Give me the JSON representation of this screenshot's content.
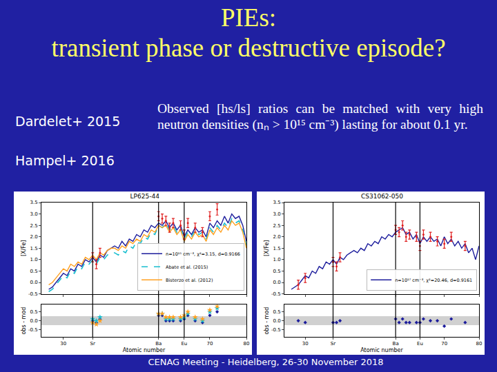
{
  "slide": {
    "title": [
      "PIEs:",
      "transient phase or destructive episode?"
    ],
    "references": [
      "Dardelet+ 2015",
      "Hampel+ 2016"
    ],
    "text": "Observed [hs/ls] ratios can be matched with very high neutron densities (nₙ > 10¹⁵ cm⁻³) lasting for about 0.1 yr.",
    "footer": "CENAG Meeting - Heidelberg, 26-30 November 2018"
  },
  "chart_data": [
    {
      "type": "line",
      "title": "LP625-44",
      "x_label": "Atomic number",
      "y_label": "[X/Fe]",
      "residual_label": "obs - mod",
      "xlim": [
        24,
        80
      ],
      "xticks": [
        30,
        {
          "value": 38,
          "label": "Sr"
        },
        {
          "value": 56,
          "label": "Ba"
        },
        {
          "value": 63,
          "label": "Eu"
        },
        70,
        80
      ],
      "vlines": [
        38,
        56,
        63
      ],
      "ylim": [
        -0.5,
        3.5
      ],
      "yticks": [
        -0.5,
        {
          "value": 0,
          "label": "0.0"
        },
        0.5,
        {
          "value": 1,
          "label": "1.0"
        },
        1.5,
        {
          "value": 2,
          "label": "2.0"
        },
        2.5,
        {
          "value": 3,
          "label": "3.0"
        },
        3.5
      ],
      "residual_ylim": [
        -0.9,
        0.9
      ],
      "residual_yticks": [
        -0.5,
        {
          "value": 0,
          "label": "0.0"
        },
        0.5
      ],
      "residual_band": [
        -0.25,
        0.25
      ],
      "grid": false,
      "legend": "lower right",
      "x": [
        26,
        27,
        28,
        29,
        30,
        31,
        32,
        33,
        34,
        35,
        36,
        37,
        38,
        39,
        40,
        41,
        42,
        43,
        44,
        45,
        46,
        47,
        48,
        49,
        50,
        51,
        52,
        53,
        54,
        55,
        56,
        57,
        58,
        59,
        60,
        61,
        62,
        63,
        64,
        65,
        66,
        67,
        68,
        69,
        70,
        71,
        72,
        73,
        74,
        75,
        76,
        77,
        78,
        79,
        80
      ],
      "series": [
        {
          "name": "n=10¹⁵ cm⁻³, χ²=3.15, d=0.9166",
          "color": "#1c1c9c",
          "line_style": "solid",
          "marker": "diamond",
          "values": [
            -0.3,
            -0.2,
            0.0,
            0.2,
            0.4,
            0.3,
            0.6,
            0.5,
            0.8,
            0.7,
            1.0,
            0.9,
            1.1,
            0.9,
            1.2,
            1.1,
            1.4,
            1.5,
            1.6,
            1.5,
            1.8,
            1.6,
            1.9,
            1.8,
            2.1,
            2.0,
            2.3,
            2.2,
            2.5,
            2.4,
            2.6,
            2.5,
            2.7,
            2.4,
            2.6,
            2.3,
            2.5,
            2.0,
            2.3,
            2.1,
            2.4,
            2.2,
            2.3,
            2.0,
            2.6,
            2.4,
            2.7,
            2.5,
            2.9,
            2.6,
            3.0,
            2.8,
            2.9,
            2.5,
            1.8
          ],
          "residuals": [
            0.0,
            -0.1,
            0.1,
            0.3,
            0.3,
            0.0,
            0.0,
            0.0,
            0.0,
            0.1,
            0.3,
            0.0,
            -0.1,
            0.3,
            0.5
          ]
        },
        {
          "name": "Abate et al. (2015)",
          "color": "#17becf",
          "line_style": "dashed",
          "marker": "star",
          "values": [
            -0.4,
            -0.3,
            -0.1,
            0.1,
            0.3,
            0.2,
            0.5,
            0.4,
            0.7,
            0.6,
            0.9,
            0.8,
            1.0,
            0.8,
            1.1,
            1.0,
            1.2,
            1.3,
            1.3,
            1.2,
            1.4,
            1.3,
            1.6,
            1.5,
            1.8,
            1.7,
            2.0,
            1.9,
            2.2,
            2.1,
            2.5,
            2.4,
            2.6,
            2.3,
            2.5,
            2.2,
            2.4,
            1.9,
            2.2,
            2.0,
            2.3,
            2.1,
            2.2,
            1.9,
            2.4,
            2.2,
            2.5,
            2.3,
            2.6,
            2.4,
            2.8,
            2.6,
            2.7,
            2.3,
            1.6
          ],
          "residuals": [
            0.1,
            0.0,
            0.2,
            0.4,
            0.4,
            0.1,
            0.1,
            0.1,
            0.1,
            0.2,
            0.4,
            0.1,
            0.0,
            0.5,
            0.7
          ]
        },
        {
          "name": "Bisterzo et al. (2012)",
          "color": "#ffa020",
          "line_style": "solid",
          "marker": "star",
          "values": [
            -0.1,
            0.0,
            0.2,
            0.4,
            0.6,
            0.5,
            0.8,
            0.7,
            0.9,
            0.8,
            1.1,
            1.0,
            1.2,
            1.0,
            1.3,
            1.2,
            1.4,
            1.5,
            1.5,
            1.4,
            1.6,
            1.5,
            1.8,
            1.7,
            1.9,
            1.8,
            2.1,
            2.0,
            2.3,
            2.2,
            2.5,
            2.4,
            2.5,
            2.2,
            2.4,
            2.1,
            2.3,
            1.8,
            2.1,
            1.9,
            2.2,
            2.0,
            2.1,
            1.8,
            2.3,
            2.1,
            2.4,
            2.2,
            2.5,
            2.3,
            2.7,
            2.5,
            2.6,
            2.2,
            1.5
          ],
          "residuals": [
            -0.1,
            -0.2,
            0.0,
            0.4,
            0.4,
            0.2,
            0.2,
            0.2,
            0.2,
            0.3,
            0.5,
            0.2,
            0.1,
            0.6,
            0.8
          ]
        }
      ],
      "observations": {
        "color": "#e02020",
        "marker": "circle",
        "x": [
          38,
          39,
          40,
          56,
          57,
          58,
          59,
          60,
          62,
          63,
          64,
          66,
          68,
          70,
          72
        ],
        "values": [
          1.1,
          0.8,
          1.3,
          2.9,
          2.8,
          2.7,
          2.4,
          2.6,
          2.5,
          2.1,
          2.6,
          2.4,
          2.2,
          2.9,
          3.2
        ],
        "errors": [
          0.2,
          0.2,
          0.2,
          0.2,
          0.2,
          0.2,
          0.2,
          0.2,
          0.2,
          0.2,
          0.2,
          0.2,
          0.2,
          0.2,
          0.25
        ]
      }
    },
    {
      "type": "line",
      "title": "CS31062-050",
      "x_label": "Atomic number",
      "y_label": "[X/Fe]",
      "residual_label": "obs - mod",
      "xlim": [
        24,
        80
      ],
      "xticks": [
        30,
        {
          "value": 38,
          "label": "Sr"
        },
        {
          "value": 56,
          "label": "Ba"
        },
        {
          "value": 63,
          "label": "Eu"
        },
        70,
        80
      ],
      "vlines": [
        38,
        56,
        63
      ],
      "ylim": [
        -0.5,
        3.5
      ],
      "yticks": [
        -0.5,
        {
          "value": 0,
          "label": "0.0"
        },
        0.5,
        {
          "value": 1,
          "label": "1.0"
        },
        1.5,
        {
          "value": 2,
          "label": "2.0"
        },
        2.5,
        {
          "value": 3,
          "label": "3.0"
        },
        3.5
      ],
      "residual_ylim": [
        -0.9,
        0.9
      ],
      "residual_yticks": [
        -0.5,
        {
          "value": 0,
          "label": "0.0"
        },
        0.5
      ],
      "residual_band": [
        -0.25,
        0.25
      ],
      "grid": false,
      "legend": "lower right",
      "x": [
        26,
        27,
        28,
        29,
        30,
        31,
        32,
        33,
        34,
        35,
        36,
        37,
        38,
        39,
        40,
        41,
        42,
        43,
        44,
        45,
        46,
        47,
        48,
        49,
        50,
        51,
        52,
        53,
        54,
        55,
        56,
        57,
        58,
        59,
        60,
        61,
        62,
        63,
        64,
        65,
        66,
        67,
        68,
        69,
        70,
        71,
        72,
        73,
        74,
        75,
        76,
        77,
        78,
        79,
        80
      ],
      "series": [
        {
          "name": "n=10¹⁷ cm⁻³, χ²=20.46, d=0.9161",
          "color": "#1c1c9c",
          "line_style": "solid",
          "marker": "diamond",
          "values": [
            -0.3,
            -0.2,
            -0.1,
            0.1,
            0.3,
            0.2,
            0.5,
            0.4,
            0.7,
            0.6,
            0.9,
            0.8,
            1.0,
            0.8,
            1.1,
            1.0,
            1.2,
            1.3,
            1.4,
            1.3,
            1.5,
            1.4,
            1.7,
            1.6,
            1.8,
            1.7,
            2.0,
            1.9,
            2.1,
            2.0,
            2.2,
            2.3,
            2.4,
            2.1,
            2.2,
            1.9,
            2.1,
            1.7,
            2.0,
            1.8,
            2.0,
            1.8,
            1.9,
            1.6,
            2.0,
            1.7,
            1.9,
            1.6,
            1.8,
            1.5,
            1.7,
            1.3,
            1.5,
            1.0,
            1.6
          ],
          "residuals": [
            0.0,
            -0.1,
            -0.1,
            -0.1,
            0.0,
            0.1,
            -0.1,
            0.1,
            -0.1,
            -0.1,
            -0.1,
            -0.1,
            0.1,
            0.0,
            0.0,
            -0.3,
            0.1,
            -0.1
          ]
        }
      ],
      "observations": {
        "color": "#e02020",
        "marker": "circle",
        "x": [
          28,
          30,
          38,
          39,
          40,
          56,
          57,
          58,
          59,
          60,
          62,
          63,
          64,
          66,
          68,
          70,
          72,
          76
        ],
        "values": [
          -0.1,
          0.2,
          0.9,
          0.7,
          1.1,
          2.3,
          2.2,
          2.5,
          2.0,
          2.1,
          2.0,
          1.6,
          2.1,
          2.0,
          1.8,
          1.7,
          2.0,
          1.6
        ],
        "errors": [
          0.2,
          0.2,
          0.2,
          0.2,
          0.2,
          0.2,
          0.2,
          0.2,
          0.2,
          0.2,
          0.2,
          0.2,
          0.2,
          0.2,
          0.2,
          0.2,
          0.2,
          0.2
        ]
      }
    }
  ]
}
